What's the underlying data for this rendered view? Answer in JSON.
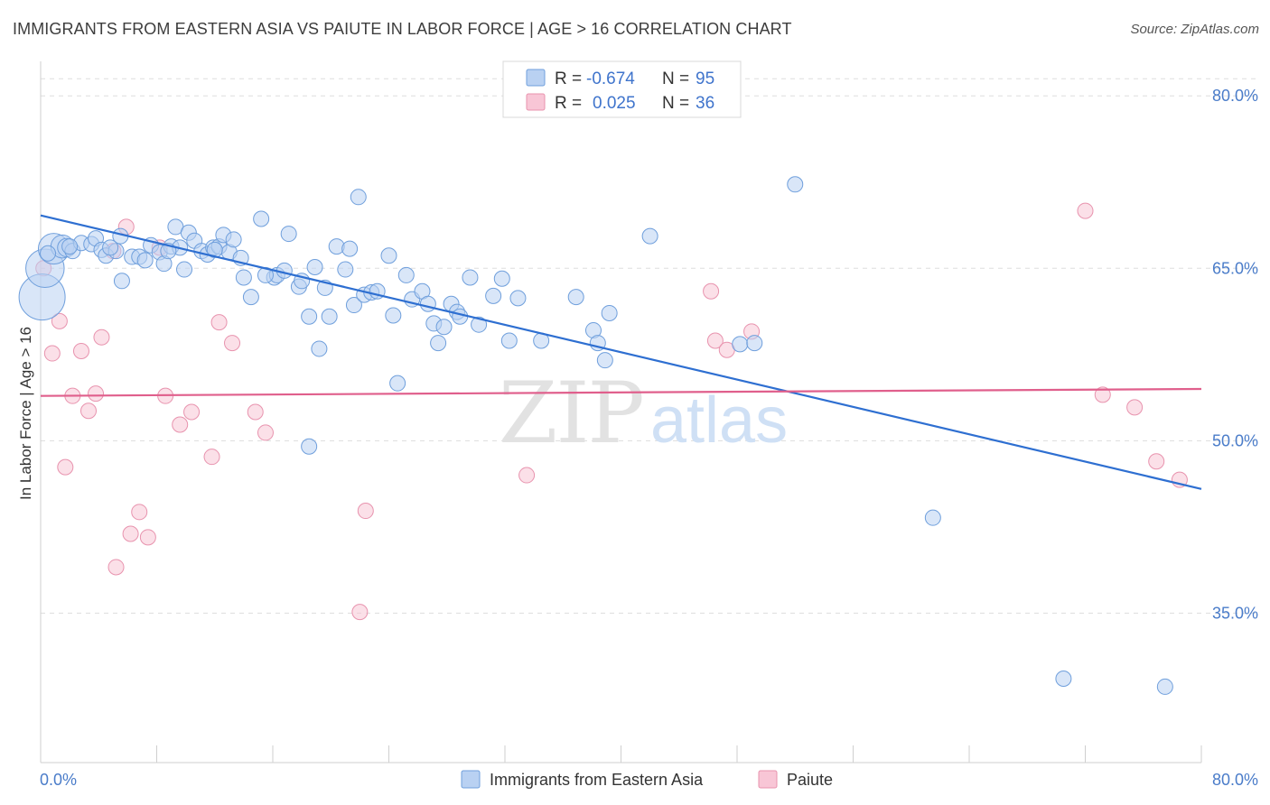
{
  "title": "IMMIGRANTS FROM EASTERN ASIA VS PAIUTE IN LABOR FORCE | AGE > 16 CORRELATION CHART",
  "source": "Source: ZipAtlas.com",
  "watermark": {
    "zip": "ZIP",
    "atlas": "atlas"
  },
  "colors": {
    "blue_fill": "#b9d1f2",
    "blue_stroke": "#6f9fdc",
    "blue_line": "#2e6fd1",
    "pink_fill": "#f8c6d6",
    "pink_stroke": "#e893ae",
    "pink_line": "#e05f8c",
    "axis_text": "#4a7cc9",
    "grid": "#dddddd"
  },
  "legend": {
    "rows": [
      {
        "r_label": "R =",
        "r_value": "-0.674",
        "n_label": "N =",
        "n_value": "95",
        "series": "blue"
      },
      {
        "r_label": "R =",
        "r_value": "0.025",
        "n_label": "N =",
        "n_value": "36",
        "series": "pink"
      }
    ]
  },
  "chart_data": {
    "type": "scatter",
    "title": "IMMIGRANTS FROM EASTERN ASIA VS PAIUTE IN LABOR FORCE | AGE > 16 CORRELATION CHART",
    "xlabel": "",
    "ylabel": "In Labor Force | Age > 16",
    "xlim": [
      0,
      80
    ],
    "ylim": [
      22,
      83
    ],
    "x_tick_labels": [
      {
        "value": 0,
        "label": "0.0%"
      },
      {
        "value": 80,
        "label": "80.0%"
      }
    ],
    "y_tick_labels": [
      {
        "value": 80,
        "label": "80.0%"
      },
      {
        "value": 65,
        "label": "65.0%"
      },
      {
        "value": 50,
        "label": "50.0%"
      },
      {
        "value": 35,
        "label": "35.0%"
      }
    ],
    "grid": true,
    "legend_position": "bottom",
    "series": [
      {
        "name": "Immigrants from Eastern Asia",
        "color": "blue",
        "trend": {
          "x": [
            0,
            80
          ],
          "y": [
            69.6,
            45.8
          ]
        },
        "points": [
          [
            0.1,
            62.5,
            3
          ],
          [
            0.3,
            65.0,
            2.5
          ],
          [
            0.9,
            66.7,
            2
          ],
          [
            1.5,
            66.9,
            1.5
          ],
          [
            1.8,
            66.8,
            1.2
          ],
          [
            2.2,
            66.5,
            1
          ],
          [
            2.8,
            67.2,
            1
          ],
          [
            3.5,
            67.1,
            1
          ],
          [
            3.8,
            67.6,
            1
          ],
          [
            4.2,
            66.6,
            1
          ],
          [
            4.5,
            66.1,
            1
          ],
          [
            5.2,
            66.5,
            1
          ],
          [
            5.5,
            67.8,
            1
          ],
          [
            5.6,
            63.9,
            1
          ],
          [
            6.3,
            66.0,
            1
          ],
          [
            6.8,
            66.0,
            1
          ],
          [
            7.2,
            65.7,
            1
          ],
          [
            7.6,
            67.0,
            1
          ],
          [
            8.2,
            66.4,
            1
          ],
          [
            8.5,
            65.4,
            1
          ],
          [
            9.0,
            66.9,
            1
          ],
          [
            9.3,
            68.6,
            1
          ],
          [
            9.6,
            66.8,
            1
          ],
          [
            9.9,
            64.9,
            1
          ],
          [
            10.2,
            68.1,
            1
          ],
          [
            10.6,
            67.4,
            1
          ],
          [
            11.1,
            66.5,
            1
          ],
          [
            11.5,
            66.2,
            1
          ],
          [
            11.9,
            66.8,
            1
          ],
          [
            12.3,
            66.9,
            1
          ],
          [
            12.6,
            67.9,
            1
          ],
          [
            13.0,
            66.4,
            1
          ],
          [
            13.3,
            67.5,
            1
          ],
          [
            13.8,
            65.9,
            1
          ],
          [
            14.0,
            64.2,
            1
          ],
          [
            14.5,
            62.5,
            1
          ],
          [
            15.2,
            69.3,
            1
          ],
          [
            16.1,
            64.2,
            1
          ],
          [
            16.3,
            64.4,
            1
          ],
          [
            16.8,
            64.8,
            1
          ],
          [
            17.1,
            68.0,
            1
          ],
          [
            17.8,
            63.4,
            1
          ],
          [
            18.0,
            63.9,
            1
          ],
          [
            18.5,
            60.8,
            1
          ],
          [
            18.9,
            65.1,
            1
          ],
          [
            19.2,
            58.0,
            1
          ],
          [
            19.6,
            63.3,
            1
          ],
          [
            19.9,
            60.8,
            1
          ],
          [
            20.4,
            66.9,
            1
          ],
          [
            21.0,
            64.9,
            1
          ],
          [
            21.3,
            66.7,
            1
          ],
          [
            21.6,
            61.8,
            1
          ],
          [
            21.9,
            71.2,
            1
          ],
          [
            22.3,
            62.7,
            1
          ],
          [
            22.8,
            62.9,
            1
          ],
          [
            23.2,
            63.0,
            1
          ],
          [
            24.0,
            66.1,
            1
          ],
          [
            24.3,
            60.9,
            1
          ],
          [
            24.6,
            55.0,
            1
          ],
          [
            25.2,
            64.4,
            1
          ],
          [
            25.6,
            62.3,
            1
          ],
          [
            26.3,
            63.0,
            1
          ],
          [
            26.7,
            61.9,
            1
          ],
          [
            27.1,
            60.2,
            1
          ],
          [
            27.4,
            58.5,
            1
          ],
          [
            27.8,
            59.9,
            1
          ],
          [
            28.3,
            61.9,
            1
          ],
          [
            28.7,
            61.2,
            1
          ],
          [
            28.9,
            60.8,
            1
          ],
          [
            29.6,
            64.2,
            1
          ],
          [
            30.2,
            60.1,
            1
          ],
          [
            31.2,
            62.6,
            1
          ],
          [
            31.8,
            64.1,
            1
          ],
          [
            32.3,
            58.7,
            1
          ],
          [
            32.9,
            62.4,
            1
          ],
          [
            34.5,
            58.7,
            1
          ],
          [
            36.9,
            62.5,
            1
          ],
          [
            38.1,
            59.6,
            1
          ],
          [
            38.4,
            58.5,
            1
          ],
          [
            38.9,
            57.0,
            1
          ],
          [
            39.2,
            61.1,
            1
          ],
          [
            42.0,
            67.8,
            1
          ],
          [
            48.2,
            58.4,
            1
          ],
          [
            49.2,
            58.5,
            1
          ],
          [
            52.0,
            72.3,
            1
          ],
          [
            61.5,
            43.3,
            1
          ],
          [
            70.5,
            29.3,
            1
          ],
          [
            77.5,
            28.6,
            1
          ],
          [
            18.5,
            49.5,
            1
          ],
          [
            0.5,
            66.3,
            1
          ],
          [
            2.0,
            66.9,
            1
          ],
          [
            4.8,
            66.8,
            1
          ],
          [
            8.8,
            66.5,
            1
          ],
          [
            12.0,
            66.6,
            1
          ],
          [
            15.5,
            64.4,
            1
          ]
        ]
      },
      {
        "name": "Paiute",
        "color": "pink",
        "trend": {
          "x": [
            0,
            80
          ],
          "y": [
            53.9,
            54.5
          ]
        },
        "points": [
          [
            0.2,
            65.0,
            1
          ],
          [
            0.8,
            57.6,
            1
          ],
          [
            1.3,
            60.4,
            1
          ],
          [
            1.7,
            47.7,
            1
          ],
          [
            2.2,
            53.9,
            1
          ],
          [
            2.8,
            57.8,
            1
          ],
          [
            3.3,
            52.6,
            1
          ],
          [
            3.8,
            54.1,
            1
          ],
          [
            4.2,
            59.0,
            1
          ],
          [
            5.0,
            66.5,
            1
          ],
          [
            5.2,
            39.0,
            1
          ],
          [
            5.9,
            68.6,
            1
          ],
          [
            6.2,
            41.9,
            1
          ],
          [
            6.8,
            43.8,
            1
          ],
          [
            7.4,
            41.6,
            1
          ],
          [
            8.2,
            66.8,
            1
          ],
          [
            8.6,
            53.9,
            1
          ],
          [
            9.6,
            51.4,
            1
          ],
          [
            10.4,
            52.5,
            1
          ],
          [
            11.8,
            48.6,
            1
          ],
          [
            12.3,
            60.3,
            1
          ],
          [
            13.2,
            58.5,
            1
          ],
          [
            14.8,
            52.5,
            1
          ],
          [
            15.5,
            50.7,
            1
          ],
          [
            22.0,
            35.1,
            1
          ],
          [
            22.4,
            43.9,
            1
          ],
          [
            33.5,
            47.0,
            1
          ],
          [
            46.2,
            63.0,
            1
          ],
          [
            46.5,
            58.7,
            1
          ],
          [
            47.3,
            57.9,
            1
          ],
          [
            49.0,
            59.5,
            1
          ],
          [
            72.0,
            70.0,
            1
          ],
          [
            73.2,
            54.0,
            1
          ],
          [
            75.4,
            52.9,
            1
          ],
          [
            76.9,
            48.2,
            1
          ],
          [
            78.5,
            46.6,
            1
          ]
        ]
      }
    ]
  }
}
